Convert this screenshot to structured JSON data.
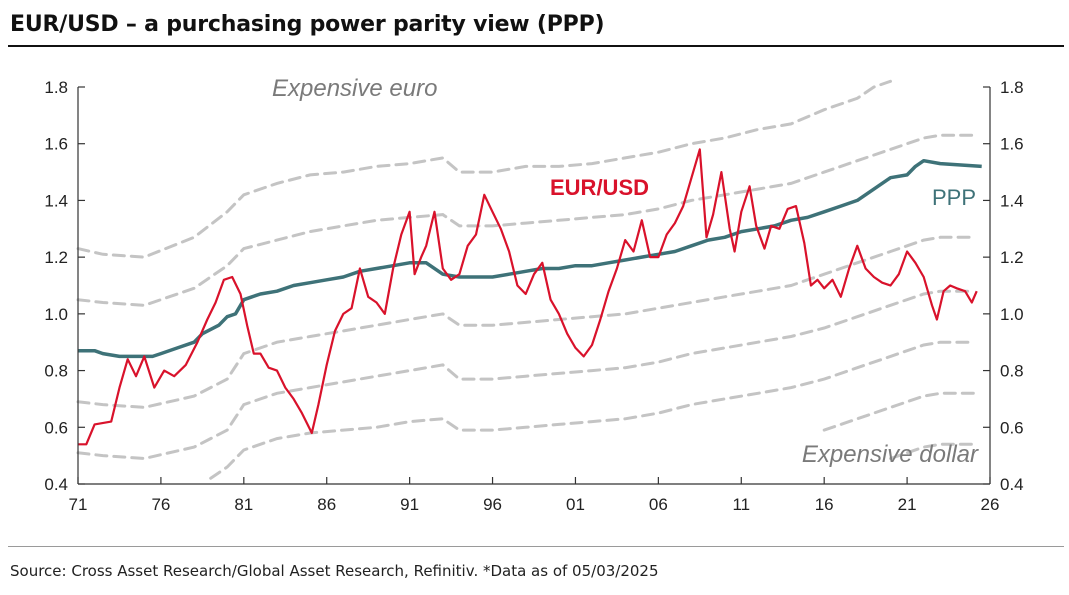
{
  "title": "EUR/USD – a purchasing power parity view (PPP)",
  "source": "Source: Cross Asset Research/Global Asset Research, Refinitiv. *Data as of 05/03/2025",
  "colors": {
    "eurusd": "#d9122b",
    "ppp": "#3e7278",
    "bands": "#c4c4c4",
    "axis": "#333333"
  },
  "chart_data": {
    "type": "line",
    "x_ticks": [
      "71",
      "76",
      "81",
      "86",
      "91",
      "96",
      "01",
      "06",
      "11",
      "16",
      "21",
      "26"
    ],
    "x_range": [
      1971,
      2026
    ],
    "ylim": [
      0.4,
      1.8
    ],
    "y_ticks": [
      "0.4",
      "0.6",
      "0.8",
      "1.0",
      "1.2",
      "1.4",
      "1.6",
      "1.8"
    ],
    "grid": false,
    "annotations": [
      "Expensive euro",
      "Expensive dollar"
    ],
    "series": [
      {
        "name": "EUR/USD",
        "points": [
          [
            1971.0,
            0.54
          ],
          [
            1971.5,
            0.54
          ],
          [
            1972.0,
            0.61
          ],
          [
            1973.0,
            0.62
          ],
          [
            1973.5,
            0.74
          ],
          [
            1974.0,
            0.84
          ],
          [
            1974.5,
            0.78
          ],
          [
            1975.0,
            0.85
          ],
          [
            1975.6,
            0.74
          ],
          [
            1976.2,
            0.8
          ],
          [
            1976.8,
            0.78
          ],
          [
            1977.5,
            0.82
          ],
          [
            1978.2,
            0.9
          ],
          [
            1978.8,
            0.98
          ],
          [
            1979.3,
            1.04
          ],
          [
            1979.8,
            1.12
          ],
          [
            1980.3,
            1.13
          ],
          [
            1980.8,
            1.07
          ],
          [
            1981.2,
            0.96
          ],
          [
            1981.6,
            0.86
          ],
          [
            1982.0,
            0.86
          ],
          [
            1982.5,
            0.81
          ],
          [
            1983.0,
            0.8
          ],
          [
            1983.5,
            0.74
          ],
          [
            1984.0,
            0.7
          ],
          [
            1984.5,
            0.65
          ],
          [
            1985.1,
            0.58
          ],
          [
            1985.5,
            0.68
          ],
          [
            1986.0,
            0.82
          ],
          [
            1986.5,
            0.94
          ],
          [
            1987.0,
            1.0
          ],
          [
            1987.5,
            1.02
          ],
          [
            1988.0,
            1.16
          ],
          [
            1988.5,
            1.06
          ],
          [
            1989.0,
            1.04
          ],
          [
            1989.5,
            1.0
          ],
          [
            1990.0,
            1.16
          ],
          [
            1990.5,
            1.28
          ],
          [
            1991.0,
            1.36
          ],
          [
            1991.3,
            1.14
          ],
          [
            1991.7,
            1.2
          ],
          [
            1992.0,
            1.24
          ],
          [
            1992.5,
            1.36
          ],
          [
            1993.0,
            1.16
          ],
          [
            1993.5,
            1.12
          ],
          [
            1994.0,
            1.14
          ],
          [
            1994.5,
            1.24
          ],
          [
            1995.0,
            1.28
          ],
          [
            1995.5,
            1.42
          ],
          [
            1996.0,
            1.36
          ],
          [
            1996.5,
            1.3
          ],
          [
            1997.0,
            1.22
          ],
          [
            1997.5,
            1.1
          ],
          [
            1998.0,
            1.07
          ],
          [
            1998.5,
            1.14
          ],
          [
            1999.0,
            1.18
          ],
          [
            1999.5,
            1.05
          ],
          [
            2000.0,
            1.0
          ],
          [
            2000.5,
            0.93
          ],
          [
            2001.0,
            0.88
          ],
          [
            2001.5,
            0.85
          ],
          [
            2002.0,
            0.89
          ],
          [
            2002.5,
            0.98
          ],
          [
            2003.0,
            1.08
          ],
          [
            2003.5,
            1.16
          ],
          [
            2004.0,
            1.26
          ],
          [
            2004.5,
            1.22
          ],
          [
            2005.0,
            1.33
          ],
          [
            2005.5,
            1.2
          ],
          [
            2006.0,
            1.2
          ],
          [
            2006.5,
            1.28
          ],
          [
            2007.0,
            1.32
          ],
          [
            2007.5,
            1.38
          ],
          [
            2008.0,
            1.48
          ],
          [
            2008.5,
            1.58
          ],
          [
            2008.9,
            1.27
          ],
          [
            2009.3,
            1.35
          ],
          [
            2009.8,
            1.5
          ],
          [
            2010.3,
            1.3
          ],
          [
            2010.6,
            1.22
          ],
          [
            2011.0,
            1.36
          ],
          [
            2011.5,
            1.45
          ],
          [
            2011.9,
            1.31
          ],
          [
            2012.4,
            1.23
          ],
          [
            2012.8,
            1.31
          ],
          [
            2013.3,
            1.3
          ],
          [
            2013.8,
            1.37
          ],
          [
            2014.3,
            1.38
          ],
          [
            2014.8,
            1.25
          ],
          [
            2015.2,
            1.1
          ],
          [
            2015.6,
            1.12
          ],
          [
            2016.0,
            1.09
          ],
          [
            2016.5,
            1.12
          ],
          [
            2017.0,
            1.06
          ],
          [
            2017.5,
            1.16
          ],
          [
            2018.0,
            1.24
          ],
          [
            2018.5,
            1.16
          ],
          [
            2019.0,
            1.13
          ],
          [
            2019.5,
            1.11
          ],
          [
            2020.0,
            1.1
          ],
          [
            2020.5,
            1.14
          ],
          [
            2021.0,
            1.22
          ],
          [
            2021.5,
            1.18
          ],
          [
            2022.0,
            1.13
          ],
          [
            2022.5,
            1.03
          ],
          [
            2022.8,
            0.98
          ],
          [
            2023.2,
            1.08
          ],
          [
            2023.6,
            1.1
          ],
          [
            2024.0,
            1.09
          ],
          [
            2024.5,
            1.08
          ],
          [
            2024.9,
            1.04
          ],
          [
            2025.2,
            1.08
          ]
        ]
      },
      {
        "name": "PPP",
        "points": [
          [
            1971.0,
            0.87
          ],
          [
            1972.0,
            0.87
          ],
          [
            1972.5,
            0.86
          ],
          [
            1973.5,
            0.85
          ],
          [
            1975.5,
            0.85
          ],
          [
            1976.0,
            0.86
          ],
          [
            1977.0,
            0.88
          ],
          [
            1978.0,
            0.9
          ],
          [
            1978.5,
            0.93
          ],
          [
            1979.5,
            0.96
          ],
          [
            1980.0,
            0.99
          ],
          [
            1980.5,
            1.0
          ],
          [
            1981.0,
            1.05
          ],
          [
            1981.5,
            1.06
          ],
          [
            1982.0,
            1.07
          ],
          [
            1983.0,
            1.08
          ],
          [
            1984.0,
            1.1
          ],
          [
            1985.0,
            1.11
          ],
          [
            1986.0,
            1.12
          ],
          [
            1987.0,
            1.13
          ],
          [
            1988.0,
            1.15
          ],
          [
            1989.0,
            1.16
          ],
          [
            1990.0,
            1.17
          ],
          [
            1991.0,
            1.18
          ],
          [
            1992.0,
            1.18
          ],
          [
            1993.0,
            1.14
          ],
          [
            1994.0,
            1.13
          ],
          [
            1996.0,
            1.13
          ],
          [
            1997.0,
            1.14
          ],
          [
            1998.0,
            1.15
          ],
          [
            1999.0,
            1.16
          ],
          [
            2000.0,
            1.16
          ],
          [
            2001.0,
            1.17
          ],
          [
            2002.0,
            1.17
          ],
          [
            2003.0,
            1.18
          ],
          [
            2004.0,
            1.19
          ],
          [
            2005.0,
            1.2
          ],
          [
            2006.0,
            1.21
          ],
          [
            2007.0,
            1.22
          ],
          [
            2008.0,
            1.24
          ],
          [
            2009.0,
            1.26
          ],
          [
            2010.0,
            1.27
          ],
          [
            2011.0,
            1.29
          ],
          [
            2012.0,
            1.3
          ],
          [
            2013.0,
            1.31
          ],
          [
            2014.0,
            1.33
          ],
          [
            2015.0,
            1.34
          ],
          [
            2016.0,
            1.36
          ],
          [
            2017.0,
            1.38
          ],
          [
            2018.0,
            1.4
          ],
          [
            2019.0,
            1.44
          ],
          [
            2020.0,
            1.48
          ],
          [
            2021.0,
            1.49
          ],
          [
            2021.5,
            1.52
          ],
          [
            2022.0,
            1.54
          ],
          [
            2023.0,
            1.53
          ],
          [
            2025.5,
            1.52
          ]
        ]
      }
    ],
    "bands": [
      [
        [
          1971.0,
          1.23
        ],
        [
          1972.5,
          1.21
        ],
        [
          1975.0,
          1.2
        ],
        [
          1978.0,
          1.27
        ],
        [
          1980.0,
          1.36
        ],
        [
          1981.0,
          1.42
        ],
        [
          1983.0,
          1.46
        ],
        [
          1985.0,
          1.49
        ],
        [
          1987.0,
          1.5
        ],
        [
          1989.0,
          1.52
        ],
        [
          1991.0,
          1.53
        ],
        [
          1993.0,
          1.55
        ],
        [
          1994.0,
          1.5
        ],
        [
          1996.0,
          1.5
        ],
        [
          1998.0,
          1.52
        ],
        [
          2000.0,
          1.52
        ],
        [
          2002.0,
          1.53
        ],
        [
          2004.0,
          1.55
        ],
        [
          2006.0,
          1.57
        ],
        [
          2008.0,
          1.6
        ],
        [
          2010.0,
          1.62
        ],
        [
          2012.0,
          1.65
        ],
        [
          2014.0,
          1.67
        ],
        [
          2016.0,
          1.72
        ],
        [
          2018.0,
          1.76
        ],
        [
          2019.0,
          1.8
        ],
        [
          2020.0,
          1.82
        ]
      ],
      [
        [
          1971.0,
          1.05
        ],
        [
          1972.5,
          1.04
        ],
        [
          1975.0,
          1.03
        ],
        [
          1978.0,
          1.09
        ],
        [
          1980.0,
          1.17
        ],
        [
          1981.0,
          1.23
        ],
        [
          1983.0,
          1.26
        ],
        [
          1985.0,
          1.29
        ],
        [
          1987.0,
          1.31
        ],
        [
          1989.0,
          1.33
        ],
        [
          1991.0,
          1.34
        ],
        [
          1993.0,
          1.35
        ],
        [
          1994.0,
          1.31
        ],
        [
          1996.0,
          1.31
        ],
        [
          1998.0,
          1.32
        ],
        [
          2000.0,
          1.33
        ],
        [
          2002.0,
          1.34
        ],
        [
          2004.0,
          1.35
        ],
        [
          2006.0,
          1.37
        ],
        [
          2008.0,
          1.4
        ],
        [
          2010.0,
          1.42
        ],
        [
          2012.0,
          1.44
        ],
        [
          2014.0,
          1.46
        ],
        [
          2016.0,
          1.5
        ],
        [
          2018.0,
          1.54
        ],
        [
          2020.0,
          1.58
        ],
        [
          2022.0,
          1.62
        ],
        [
          2023.0,
          1.63
        ],
        [
          2025.0,
          1.63
        ]
      ],
      [
        [
          1971.0,
          0.69
        ],
        [
          1972.5,
          0.68
        ],
        [
          1975.0,
          0.67
        ],
        [
          1978.0,
          0.71
        ],
        [
          1980.0,
          0.77
        ],
        [
          1981.0,
          0.86
        ],
        [
          1983.0,
          0.9
        ],
        [
          1985.0,
          0.92
        ],
        [
          1987.0,
          0.94
        ],
        [
          1989.0,
          0.96
        ],
        [
          1991.0,
          0.98
        ],
        [
          1993.0,
          1.0
        ],
        [
          1994.0,
          0.96
        ],
        [
          1996.0,
          0.96
        ],
        [
          1998.0,
          0.97
        ],
        [
          2000.0,
          0.98
        ],
        [
          2002.0,
          0.99
        ],
        [
          2004.0,
          1.0
        ],
        [
          2006.0,
          1.02
        ],
        [
          2008.0,
          1.04
        ],
        [
          2010.0,
          1.06
        ],
        [
          2012.0,
          1.08
        ],
        [
          2014.0,
          1.1
        ],
        [
          2016.0,
          1.14
        ],
        [
          2018.0,
          1.18
        ],
        [
          2020.0,
          1.22
        ],
        [
          2022.0,
          1.26
        ],
        [
          2023.0,
          1.27
        ],
        [
          2025.0,
          1.27
        ]
      ],
      [
        [
          1971.0,
          0.51
        ],
        [
          1972.5,
          0.5
        ],
        [
          1975.0,
          0.49
        ],
        [
          1978.0,
          0.53
        ],
        [
          1980.0,
          0.59
        ],
        [
          1981.0,
          0.68
        ],
        [
          1983.0,
          0.72
        ],
        [
          1985.0,
          0.74
        ],
        [
          1987.0,
          0.76
        ],
        [
          1989.0,
          0.78
        ],
        [
          1991.0,
          0.8
        ],
        [
          1993.0,
          0.82
        ],
        [
          1994.0,
          0.77
        ],
        [
          1996.0,
          0.77
        ],
        [
          1998.0,
          0.78
        ],
        [
          2000.0,
          0.79
        ],
        [
          2002.0,
          0.8
        ],
        [
          2004.0,
          0.81
        ],
        [
          2006.0,
          0.83
        ],
        [
          2008.0,
          0.86
        ],
        [
          2010.0,
          0.88
        ],
        [
          2012.0,
          0.9
        ],
        [
          2014.0,
          0.92
        ],
        [
          2016.0,
          0.95
        ],
        [
          2018.0,
          0.99
        ],
        [
          2020.0,
          1.03
        ],
        [
          2022.0,
          1.07
        ],
        [
          2023.0,
          1.08
        ],
        [
          2025.0,
          1.08
        ]
      ],
      [
        [
          1979.0,
          0.42
        ],
        [
          1980.0,
          0.46
        ],
        [
          1981.0,
          0.52
        ],
        [
          1983.0,
          0.56
        ],
        [
          1985.0,
          0.58
        ],
        [
          1987.0,
          0.59
        ],
        [
          1989.0,
          0.6
        ],
        [
          1991.0,
          0.62
        ],
        [
          1993.0,
          0.63
        ],
        [
          1994.0,
          0.59
        ],
        [
          1996.0,
          0.59
        ],
        [
          1998.0,
          0.6
        ],
        [
          2000.0,
          0.61
        ],
        [
          2002.0,
          0.62
        ],
        [
          2004.0,
          0.63
        ],
        [
          2006.0,
          0.65
        ],
        [
          2008.0,
          0.68
        ],
        [
          2010.0,
          0.7
        ],
        [
          2012.0,
          0.72
        ],
        [
          2014.0,
          0.74
        ],
        [
          2016.0,
          0.77
        ],
        [
          2018.0,
          0.81
        ],
        [
          2020.0,
          0.85
        ],
        [
          2022.0,
          0.89
        ],
        [
          2023.0,
          0.9
        ],
        [
          2025.0,
          0.9
        ]
      ],
      [
        [
          2016.0,
          0.59
        ],
        [
          2018.0,
          0.63
        ],
        [
          2020.0,
          0.67
        ],
        [
          2022.0,
          0.71
        ],
        [
          2023.0,
          0.72
        ],
        [
          2025.0,
          0.72
        ]
      ],
      [
        [
          2020.0,
          0.49
        ],
        [
          2022.0,
          0.53
        ],
        [
          2023.0,
          0.54
        ],
        [
          2025.0,
          0.54
        ]
      ]
    ]
  }
}
